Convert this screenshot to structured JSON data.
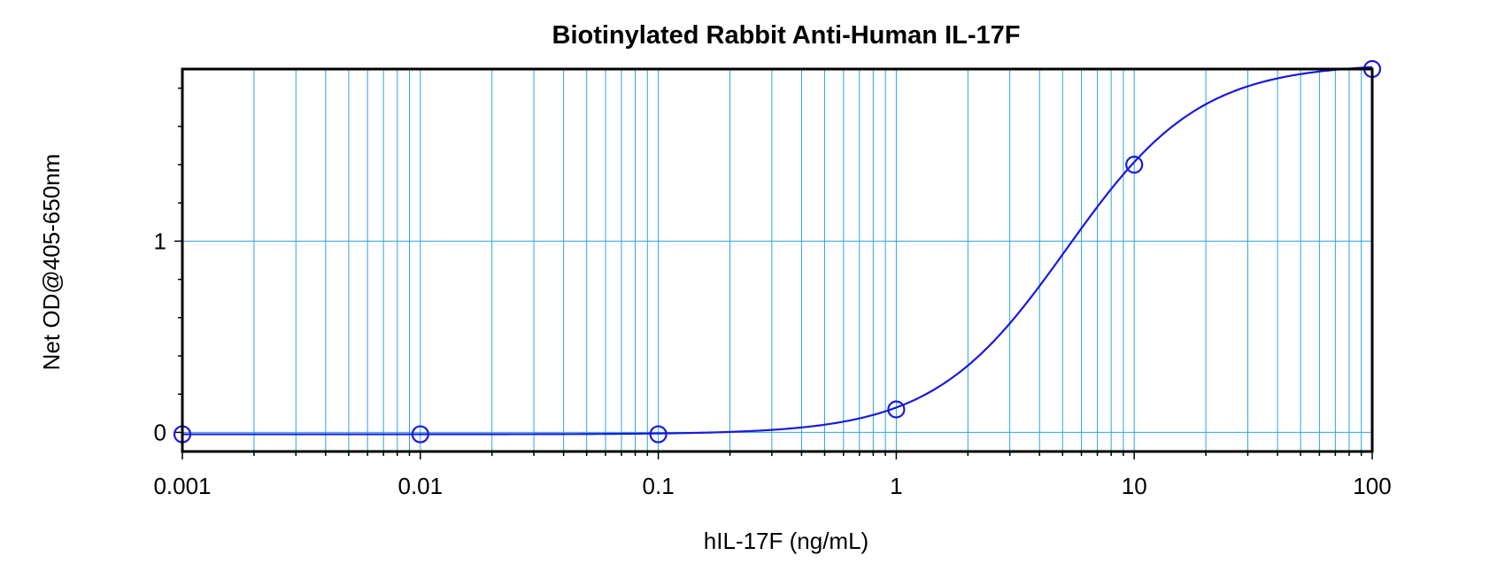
{
  "chart_data": {
    "type": "scatter",
    "title": "Biotinylated Rabbit Anti-Human IL-17F",
    "xlabel": "hIL-17F (ng/mL)",
    "ylabel": "Net OD@405-650nm",
    "x_scale": "log",
    "xlim": [
      0.001,
      100
    ],
    "ylim": [
      -0.1,
      1.9
    ],
    "grid": true,
    "x_ticks": [
      0.001,
      0.01,
      0.1,
      1,
      10,
      100
    ],
    "x_tick_labels": [
      "0.001",
      "0.01",
      "0.1",
      "1",
      "10",
      "100"
    ],
    "y_ticks": [
      0,
      1
    ],
    "y_tick_labels": [
      "0",
      "1"
    ],
    "series": [
      {
        "x": [
          0.001,
          0.01,
          0.1,
          1,
          10,
          100
        ],
        "y": [
          -0.01,
          -0.01,
          -0.01,
          0.12,
          1.4,
          1.9
        ],
        "fit": "4PL",
        "color": "#1a1adc"
      }
    ],
    "grid_color": "#2aa4e0"
  }
}
